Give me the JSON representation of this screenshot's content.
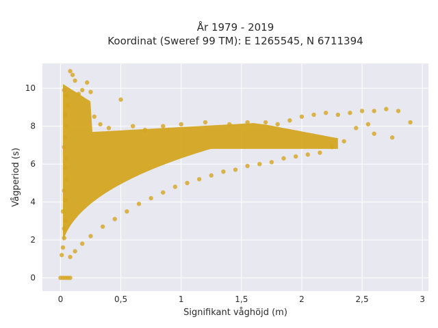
{
  "chart_data": {
    "type": "scatter",
    "title": [
      "År 1979 - 2019",
      "Koordinat (Sweref 99 TM): E 1265545, N 6711394"
    ],
    "xlabel": "Signifikant våghöjd (m)",
    "ylabel": "Vågperiod (s)",
    "xlim": [
      -0.15,
      3.05
    ],
    "ylim": [
      -0.7,
      11.3
    ],
    "xticks": [
      0,
      0.5,
      1,
      1.5,
      2,
      2.5,
      3
    ],
    "xtick_labels": [
      "0",
      "0,5",
      "1",
      "1,5",
      "2",
      "2,5",
      "3"
    ],
    "yticks": [
      0,
      2,
      4,
      6,
      8,
      10
    ],
    "ytick_labels": [
      "0",
      "2",
      "4",
      "6",
      "8",
      "10"
    ],
    "grid": true,
    "legend": "none",
    "colors": {
      "marker": "#d4a520",
      "background": "#e8e8f0",
      "grid": "#ffffff"
    },
    "series": [
      {
        "values": [
          [
            0.0,
            0.0
          ],
          [
            0.02,
            0.0
          ],
          [
            0.04,
            0.0
          ],
          [
            0.06,
            0.0
          ],
          [
            0.08,
            0.0
          ],
          [
            0.01,
            1.2
          ],
          [
            0.02,
            1.6
          ],
          [
            0.03,
            2.1
          ],
          [
            0.03,
            2.6
          ],
          [
            0.04,
            3.0
          ],
          [
            0.02,
            3.5
          ],
          [
            0.04,
            4.1
          ],
          [
            0.03,
            4.6
          ],
          [
            0.05,
            5.2
          ],
          [
            0.04,
            5.8
          ],
          [
            0.05,
            6.3
          ],
          [
            0.03,
            6.9
          ],
          [
            0.04,
            7.4
          ],
          [
            0.05,
            8.0
          ],
          [
            0.04,
            8.6
          ],
          [
            0.06,
            9.1
          ],
          [
            0.05,
            9.6
          ],
          [
            0.03,
            9.9
          ],
          [
            0.08,
            10.9
          ],
          [
            0.1,
            10.7
          ],
          [
            0.12,
            10.4
          ],
          [
            0.15,
            9.7
          ],
          [
            0.18,
            9.9
          ],
          [
            0.22,
            10.3
          ],
          [
            0.25,
            9.8
          ],
          [
            0.28,
            8.5
          ],
          [
            0.33,
            8.1
          ],
          [
            0.4,
            7.9
          ],
          [
            0.5,
            9.4
          ],
          [
            0.6,
            8.0
          ],
          [
            0.7,
            7.8
          ],
          [
            0.85,
            8.0
          ],
          [
            1.0,
            8.1
          ],
          [
            1.2,
            8.2
          ],
          [
            1.4,
            8.1
          ],
          [
            1.55,
            8.2
          ],
          [
            1.7,
            8.2
          ],
          [
            1.8,
            8.1
          ],
          [
            1.9,
            8.3
          ],
          [
            2.0,
            8.5
          ],
          [
            2.1,
            8.6
          ],
          [
            2.2,
            8.7
          ],
          [
            2.3,
            8.6
          ],
          [
            2.4,
            8.7
          ],
          [
            2.5,
            8.8
          ],
          [
            2.6,
            8.8
          ],
          [
            2.7,
            8.9
          ],
          [
            2.8,
            8.8
          ],
          [
            2.9,
            8.2
          ],
          [
            2.55,
            8.1
          ],
          [
            2.6,
            7.6
          ],
          [
            2.75,
            7.4
          ],
          [
            2.45,
            7.9
          ],
          [
            2.35,
            7.2
          ],
          [
            2.25,
            6.9
          ],
          [
            0.08,
            1.1
          ],
          [
            0.12,
            1.4
          ],
          [
            0.18,
            1.8
          ],
          [
            0.25,
            2.2
          ],
          [
            0.35,
            2.7
          ],
          [
            0.45,
            3.1
          ],
          [
            0.55,
            3.5
          ],
          [
            0.65,
            3.9
          ],
          [
            0.75,
            4.2
          ],
          [
            0.85,
            4.5
          ],
          [
            0.95,
            4.8
          ],
          [
            1.05,
            5.0
          ],
          [
            1.15,
            5.2
          ],
          [
            1.25,
            5.4
          ],
          [
            1.35,
            5.6
          ],
          [
            1.45,
            5.7
          ],
          [
            1.55,
            5.9
          ],
          [
            1.65,
            6.0
          ],
          [
            1.75,
            6.1
          ],
          [
            1.85,
            6.3
          ],
          [
            1.95,
            6.4
          ],
          [
            2.05,
            6.5
          ],
          [
            2.15,
            6.6
          ]
        ]
      }
    ]
  }
}
